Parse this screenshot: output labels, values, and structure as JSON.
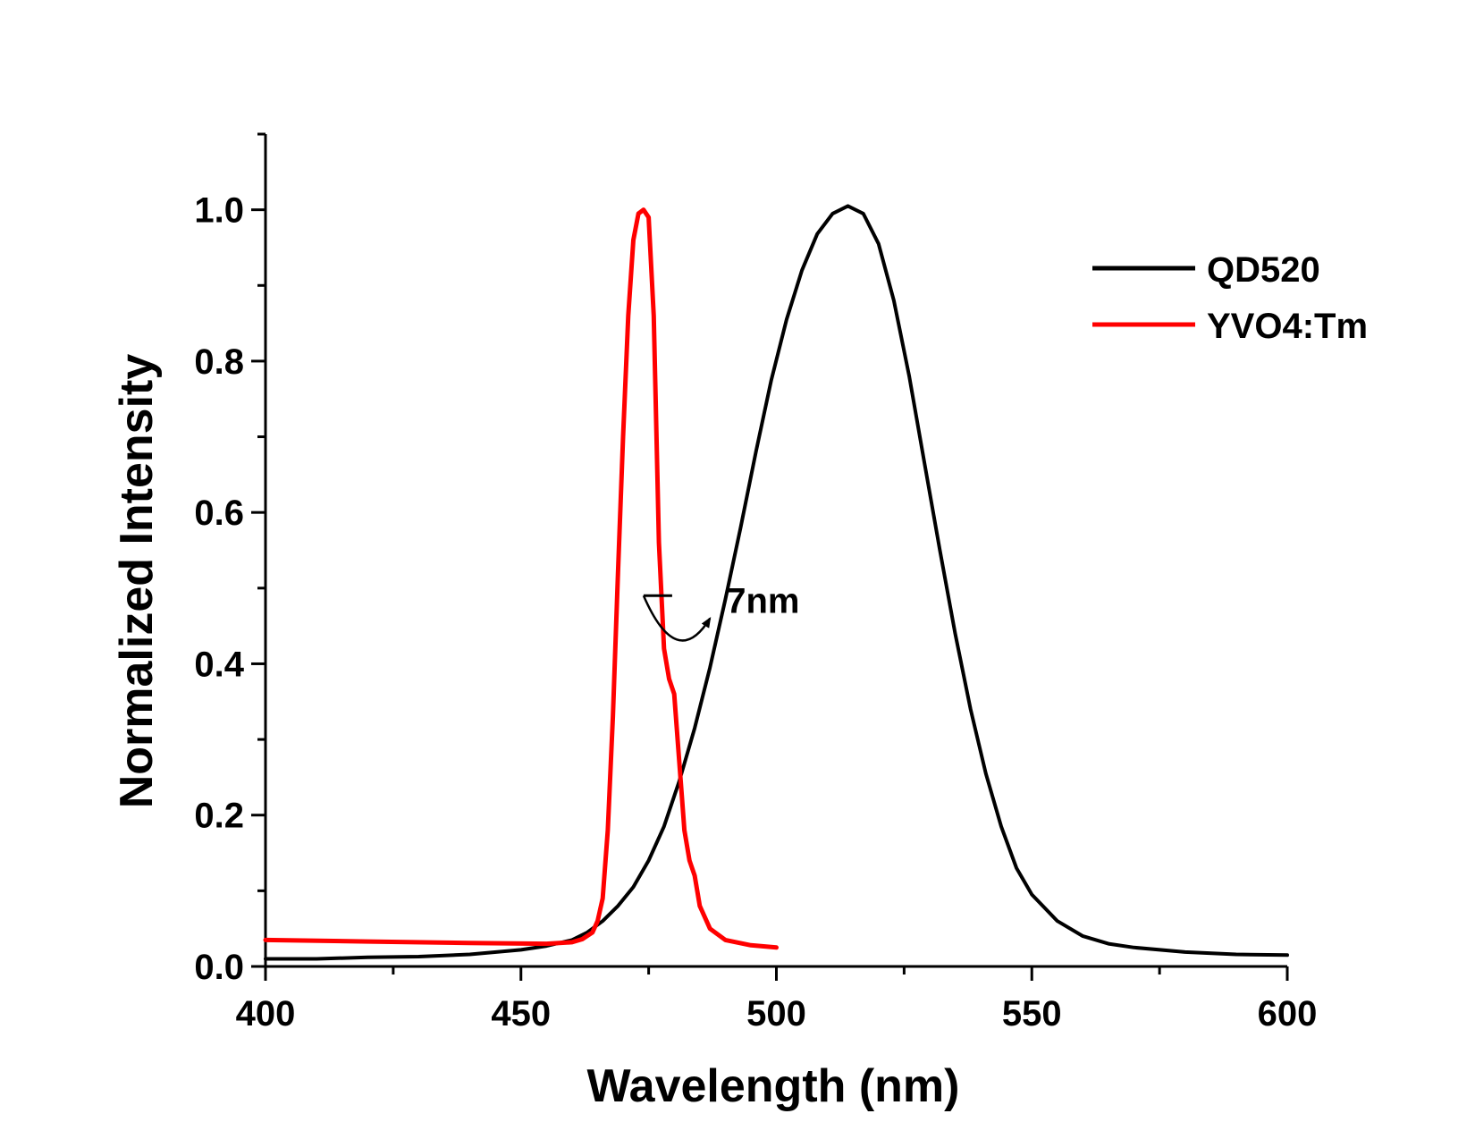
{
  "chart_data": {
    "type": "line",
    "xlabel": "Wavelength (nm)",
    "ylabel": "Normalized Intensity",
    "xlim": [
      400,
      600
    ],
    "ylim": [
      0.0,
      1.1
    ],
    "x_ticks": [
      400,
      450,
      500,
      550,
      600
    ],
    "y_ticks": [
      0.0,
      0.2,
      0.4,
      0.6,
      0.8,
      1.0
    ],
    "x_tick_labels": [
      "400",
      "450",
      "500",
      "550",
      "600"
    ],
    "y_tick_labels": [
      "0.0",
      "0.2",
      "0.4",
      "0.6",
      "0.8",
      "1.0"
    ],
    "grid": false,
    "legend_position": "top-right",
    "series": [
      {
        "name": "QD520",
        "color": "#000000",
        "x": [
          400,
          410,
          420,
          430,
          440,
          450,
          455,
          460,
          463,
          466,
          469,
          472,
          475,
          478,
          481,
          484,
          487,
          490,
          493,
          496,
          499,
          502,
          505,
          508,
          511,
          514,
          517,
          520,
          523,
          526,
          529,
          532,
          535,
          538,
          541,
          544,
          547,
          550,
          555,
          560,
          565,
          570,
          580,
          590,
          600
        ],
        "y": [
          0.01,
          0.01,
          0.012,
          0.013,
          0.016,
          0.022,
          0.027,
          0.035,
          0.045,
          0.06,
          0.08,
          0.105,
          0.14,
          0.185,
          0.245,
          0.315,
          0.395,
          0.485,
          0.58,
          0.68,
          0.775,
          0.855,
          0.92,
          0.968,
          0.995,
          1.005,
          0.995,
          0.955,
          0.88,
          0.78,
          0.665,
          0.55,
          0.44,
          0.34,
          0.255,
          0.185,
          0.13,
          0.095,
          0.06,
          0.04,
          0.03,
          0.025,
          0.019,
          0.016,
          0.015
        ]
      },
      {
        "name": "YVO4:Tm",
        "color": "#ff0000",
        "x": [
          400,
          420,
          440,
          455,
          460,
          462,
          464,
          465,
          466,
          467,
          468,
          469,
          470,
          471,
          472,
          473,
          474,
          475,
          476,
          477,
          478,
          479,
          480,
          481,
          482,
          483,
          484,
          485,
          487,
          490,
          495,
          500
        ],
        "y": [
          0.035,
          0.033,
          0.031,
          0.03,
          0.032,
          0.036,
          0.045,
          0.06,
          0.09,
          0.18,
          0.33,
          0.52,
          0.7,
          0.86,
          0.96,
          0.995,
          1.0,
          0.99,
          0.86,
          0.56,
          0.42,
          0.38,
          0.36,
          0.27,
          0.18,
          0.14,
          0.12,
          0.08,
          0.05,
          0.035,
          0.028,
          0.025
        ]
      }
    ],
    "annotations": [
      {
        "text": "7nm",
        "arrow_from": [
          474,
          0.49
        ],
        "arrow_to": [
          487,
          0.46
        ]
      }
    ]
  }
}
